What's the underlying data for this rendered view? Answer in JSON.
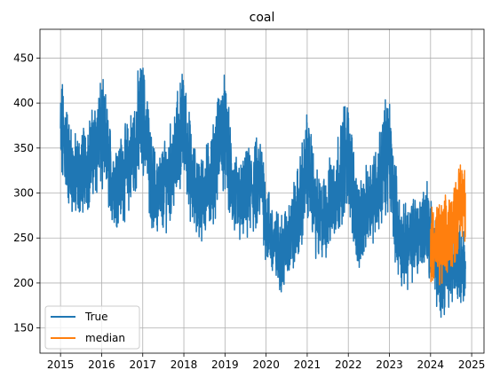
{
  "chart_data": {
    "type": "line",
    "title": "coal",
    "xlabel": "",
    "ylabel": "",
    "xlim": [
      2014.5,
      2025.3
    ],
    "ylim": [
      122,
      482
    ],
    "x_ticks": [
      2015,
      2016,
      2017,
      2018,
      2019,
      2020,
      2021,
      2022,
      2023,
      2024,
      2025
    ],
    "x_tick_labels": [
      "2015",
      "2016",
      "2017",
      "2018",
      "2019",
      "2020",
      "2021",
      "2022",
      "2023",
      "2024",
      "2025"
    ],
    "y_ticks": [
      150,
      200,
      250,
      300,
      350,
      400,
      450
    ],
    "y_tick_labels": [
      "150",
      "200",
      "250",
      "300",
      "350",
      "400",
      "450"
    ],
    "grid": true,
    "legend_position": "lower-left",
    "colors": {
      "True": "#1f77b4",
      "median": "#ff7f0e"
    },
    "series": [
      {
        "name": "True",
        "x": [
          2015.0,
          2015.1,
          2015.2,
          2015.3,
          2015.4,
          2015.5,
          2015.6,
          2015.7,
          2015.8,
          2015.9,
          2016.0,
          2016.1,
          2016.2,
          2016.3,
          2016.4,
          2016.5,
          2016.6,
          2016.7,
          2016.8,
          2016.9,
          2017.0,
          2017.1,
          2017.2,
          2017.3,
          2017.4,
          2017.5,
          2017.6,
          2017.7,
          2017.8,
          2017.9,
          2018.0,
          2018.1,
          2018.2,
          2018.3,
          2018.4,
          2018.5,
          2018.6,
          2018.7,
          2018.8,
          2018.9,
          2019.0,
          2019.1,
          2019.2,
          2019.3,
          2019.4,
          2019.5,
          2019.6,
          2019.7,
          2019.8,
          2019.9,
          2020.0,
          2020.1,
          2020.2,
          2020.3,
          2020.4,
          2020.5,
          2020.6,
          2020.7,
          2020.8,
          2020.9,
          2021.0,
          2021.1,
          2021.2,
          2021.3,
          2021.4,
          2021.5,
          2021.6,
          2021.7,
          2021.8,
          2021.9,
          2022.0,
          2022.1,
          2022.2,
          2022.3,
          2022.4,
          2022.5,
          2022.6,
          2022.7,
          2022.8,
          2022.9,
          2023.0,
          2023.1,
          2023.2,
          2023.3,
          2023.4,
          2023.5,
          2023.6,
          2023.7,
          2023.8,
          2023.9,
          2024.0,
          2024.1,
          2024.2,
          2024.3,
          2024.4,
          2024.5,
          2024.6,
          2024.7,
          2024.8,
          2024.85
        ],
        "center": [
          365,
          360,
          335,
          320,
          318,
          320,
          330,
          335,
          345,
          360,
          362,
          355,
          325,
          310,
          315,
          318,
          325,
          335,
          350,
          375,
          385,
          360,
          315,
          300,
          300,
          305,
          315,
          325,
          340,
          365,
          375,
          345,
          310,
          300,
          295,
          300,
          308,
          320,
          340,
          370,
          365,
          330,
          300,
          290,
          290,
          295,
          300,
          305,
          310,
          315,
          270,
          255,
          240,
          235,
          235,
          245,
          255,
          265,
          280,
          305,
          330,
          315,
          280,
          270,
          272,
          280,
          295,
          305,
          320,
          340,
          340,
          310,
          275,
          260,
          275,
          290,
          300,
          305,
          320,
          345,
          340,
          300,
          260,
          240,
          240,
          245,
          250,
          255,
          260,
          270,
          250,
          230,
          210,
          210,
          215,
          220,
          225,
          225,
          220,
          200
        ],
        "amplitude": [
          55,
          55,
          45,
          42,
          42,
          42,
          42,
          45,
          45,
          55,
          55,
          50,
          45,
          42,
          42,
          42,
          45,
          48,
          50,
          55,
          55,
          50,
          45,
          42,
          42,
          42,
          45,
          48,
          50,
          55,
          55,
          50,
          45,
          42,
          42,
          42,
          45,
          48,
          50,
          55,
          55,
          50,
          45,
          42,
          42,
          42,
          45,
          45,
          45,
          45,
          45,
          40,
          38,
          38,
          38,
          40,
          42,
          45,
          48,
          52,
          52,
          48,
          45,
          42,
          42,
          42,
          45,
          48,
          50,
          55,
          55,
          50,
          45,
          42,
          42,
          42,
          45,
          48,
          50,
          58,
          58,
          50,
          45,
          40,
          40,
          40,
          40,
          40,
          42,
          45,
          45,
          42,
          40,
          38,
          38,
          38,
          38,
          38,
          38,
          30
        ]
      },
      {
        "name": "median",
        "x": [
          2024.0,
          2024.1,
          2024.2,
          2024.3,
          2024.4,
          2024.5,
          2024.6,
          2024.7,
          2024.8,
          2024.85
        ],
        "center": [
          245,
          245,
          240,
          245,
          250,
          260,
          270,
          285,
          300,
          290
        ],
        "amplitude": [
          40,
          42,
          40,
          40,
          40,
          40,
          42,
          42,
          40,
          40
        ]
      }
    ]
  }
}
